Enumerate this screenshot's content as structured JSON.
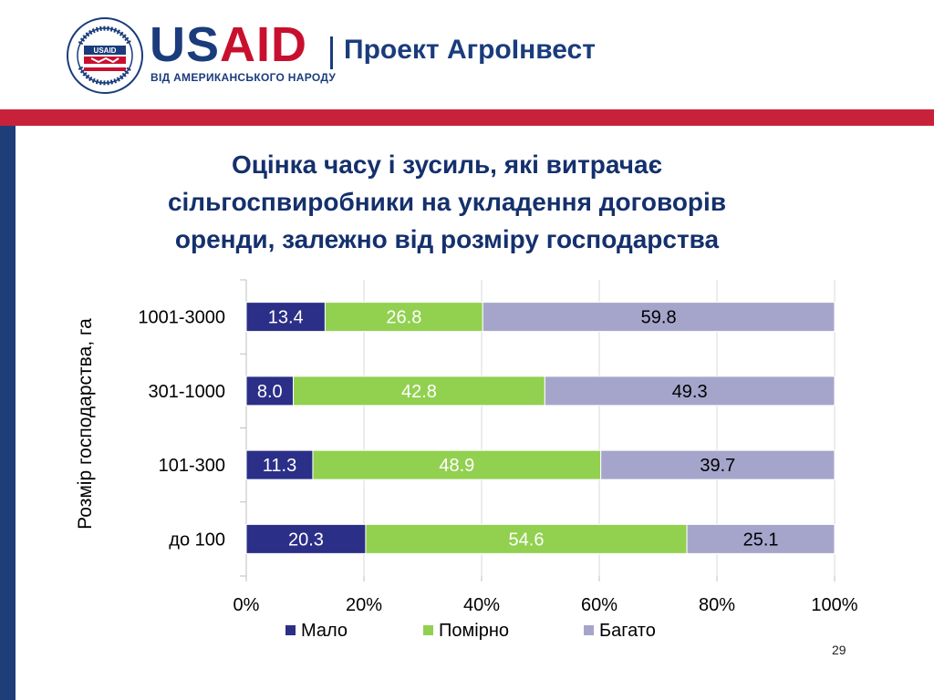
{
  "header": {
    "logo_word_a": "US",
    "logo_word_b": "AID",
    "logo_subtitle": "ВІД АМЕРИКАНСЬКОГО НАРОДУ",
    "seal_text": "UNITED STATES AGENCY INTERNATIONAL DEVELOPMENT",
    "seal_inner": "USAID",
    "project_name": "Проект АгроІнвест"
  },
  "slide": {
    "title_lines": [
      "Оцінка часу і зусиль, які витрачає",
      "сільгоспвиробники на укладення договорів",
      "оренди, залежно від розміру господарства"
    ],
    "page_number": "29"
  },
  "colors": {
    "brand_blue": "#1a3c7c",
    "brand_red": "#c8102e",
    "band_red": "#c8223a",
    "sidebar_blue": "#1e3e7a",
    "title_blue": "#14306d"
  },
  "chart_data": {
    "type": "bar",
    "orientation": "horizontal",
    "stacked": "percent",
    "categories": [
      "1001-3000",
      "301-1000",
      "101-300",
      "до 100"
    ],
    "series": [
      {
        "name": "Мало",
        "color": "#2b2f87",
        "values": [
          13.4,
          8.0,
          11.3,
          20.3
        ],
        "labels": [
          "13.4",
          "8.0",
          "11.3",
          "20.3"
        ],
        "label_color": "#ffffff"
      },
      {
        "name": "Помірно",
        "color": "#92d050",
        "values": [
          26.8,
          42.8,
          48.9,
          54.6
        ],
        "labels": [
          "26.8",
          "42.8",
          "48.9",
          "54.6"
        ],
        "label_color": "#ffffff"
      },
      {
        "name": "Багато",
        "color": "#a5a5cc",
        "values": [
          59.8,
          49.3,
          39.7,
          25.1
        ],
        "labels": [
          "59.8",
          "49.3",
          "39.7",
          "25.1"
        ],
        "label_color": "#000000"
      }
    ],
    "xticks": [
      "0%",
      "20%",
      "40%",
      "60%",
      "80%",
      "100%"
    ],
    "xlim": [
      0,
      100
    ],
    "ylabel": "Розмір господарства, га",
    "xlabel": "",
    "grid": true,
    "legend_position": "bottom"
  }
}
